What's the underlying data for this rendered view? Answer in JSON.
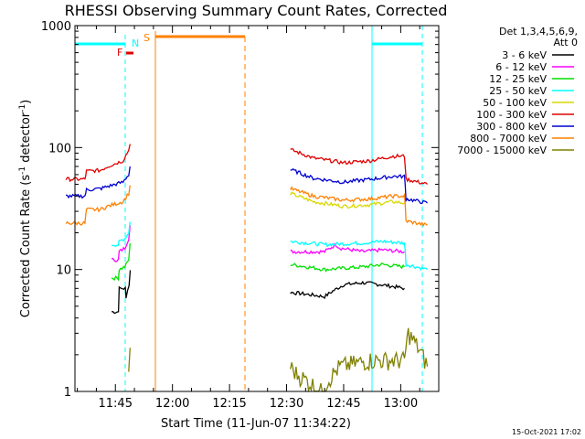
{
  "chart_data": {
    "type": "line",
    "title": "RHESSI Observing Summary Count Rates, Corrected",
    "xlabel": "Start Time (11-Jun-07 11:34:22)",
    "ylabel": "Corrected Count Rate (s⁻¹ detector⁻¹)",
    "ylabel_base": "Corrected Count Rate (s",
    "ylabel_sup1": "-1",
    "ylabel_mid": " detector",
    "ylabel_sup2": "-1",
    "ylabel_end": ")",
    "y_scale": "log",
    "ylim": [
      1,
      1000
    ],
    "xlim": [
      "11:34:22",
      "13:10:00"
    ],
    "x_tick_labels": [
      "11:45",
      "12:00",
      "12:15",
      "12:30",
      "12:45",
      "13:00"
    ],
    "x_tick_minutes": [
      705,
      720,
      735,
      750,
      765,
      780
    ],
    "y_tick_labels": [
      "1",
      "10",
      "100",
      "1000"
    ],
    "y_tick_values": [
      1,
      10,
      100,
      1000
    ],
    "data_gap_minutes": [
      727,
      751
    ],
    "legend": {
      "placement": "right",
      "header": [
        "Det 1,3,4,5,6,9,",
        "Att 0"
      ],
      "entries": [
        {
          "label": "3 - 6 keV",
          "color": "#000000"
        },
        {
          "label": "6 - 12 keV",
          "color": "#ff00ff"
        },
        {
          "label": "12 - 25 keV",
          "color": "#00e000"
        },
        {
          "label": "25 - 50 keV",
          "color": "#00ffff"
        },
        {
          "label": "50 - 100 keV",
          "color": "#d8d800"
        },
        {
          "label": "100 - 300 keV",
          "color": "#e00000"
        },
        {
          "label": "300 - 800 keV",
          "color": "#0000d0"
        },
        {
          "label": "800 - 7000 keV",
          "color": "#ff8000"
        },
        {
          "label": "7000 - 15000 keV",
          "color": "#808000"
        }
      ]
    },
    "series": [
      {
        "name": "3 - 6 keV",
        "color": "#000000",
        "x": [
          704,
          705.8,
          706,
          707.6,
          707.8,
          708.6,
          709.2,
          751,
          760,
          765,
          770,
          775,
          781
        ],
        "y": [
          4.5,
          4.5,
          7.0,
          7.0,
          6.0,
          7.5,
          12,
          6.5,
          6.0,
          7.5,
          7.8,
          7.5,
          7.0
        ]
      },
      {
        "name": "6 - 12 keV",
        "color": "#ff00ff",
        "x": [
          704,
          705.8,
          706,
          707.5,
          708.5,
          709.2,
          751,
          760,
          763,
          764,
          770,
          775,
          781
        ],
        "y": [
          12,
          12,
          14,
          15,
          18,
          28,
          14,
          14,
          16,
          15,
          14,
          14.5,
          14
        ]
      },
      {
        "name": "12 - 25 keV",
        "color": "#00e000",
        "x": [
          704,
          705.8,
          706,
          707.5,
          708.5,
          709.2,
          751,
          760,
          770,
          775,
          781
        ],
        "y": [
          8.5,
          8.5,
          10,
          10.5,
          12,
          20,
          11,
          10,
          10.5,
          11,
          10.5
        ]
      },
      {
        "name": "25 - 50 keV",
        "color": "#00ffff",
        "x": [
          704,
          705.8,
          706,
          707.5,
          708.5,
          709.2,
          751,
          760,
          770,
          775,
          781,
          781.4,
          787
        ],
        "y": [
          16,
          16,
          17,
          18,
          20,
          30,
          17,
          16,
          16.5,
          17,
          16.5,
          11,
          10
        ]
      },
      {
        "name": "50 - 100 keV",
        "color": "#d8d800",
        "x": [
          751,
          757,
          765,
          772,
          778,
          781
        ],
        "y": [
          42,
          36,
          33,
          34,
          36,
          35
        ]
      },
      {
        "name": "100 - 300 keV",
        "color": "#e00000",
        "x": [
          692,
          697,
          697.4,
          701,
          703,
          707,
          708.5,
          709.2,
          751,
          757,
          765,
          772,
          778,
          781,
          781.4,
          787
        ],
        "y": [
          55,
          55,
          64,
          65,
          70,
          78,
          95,
          125,
          96,
          82,
          75,
          78,
          85,
          85,
          55,
          50
        ]
      },
      {
        "name": "300 - 800 keV",
        "color": "#0000d0",
        "x": [
          692,
          697,
          697.4,
          701,
          703,
          707,
          708.5,
          709.2,
          751,
          757,
          765,
          772,
          778,
          781,
          781.4,
          787
        ],
        "y": [
          40,
          40,
          45,
          46,
          48,
          52,
          60,
          80,
          66,
          56,
          52,
          55,
          58,
          58,
          38,
          35
        ]
      },
      {
        "name": "800 - 7000 keV",
        "color": "#ff8000",
        "x": [
          692,
          697,
          697.4,
          701,
          703,
          707,
          708.5,
          709.2,
          751,
          757,
          765,
          772,
          778,
          781,
          781.4,
          787
        ],
        "y": [
          24,
          24,
          31,
          31,
          33,
          36,
          42,
          55,
          46,
          40,
          37,
          38,
          40,
          40,
          25,
          23
        ]
      },
      {
        "name": "7000 - 15000 keV",
        "color": "#808000",
        "x": [
          708.5,
          709.2,
          751,
          752.5,
          759,
          764,
          772,
          781,
          782,
          787
        ],
        "y": [
          1.5,
          3.0,
          1.6,
          1.4,
          1.0,
          1.6,
          1.8,
          1.8,
          3.0,
          1.6
        ]
      }
    ],
    "flags": {
      "saa_fast_label": "F",
      "night_label": "N",
      "saa_label": "S"
    },
    "footer_stamp": "15-Oct-2021 17:02"
  }
}
